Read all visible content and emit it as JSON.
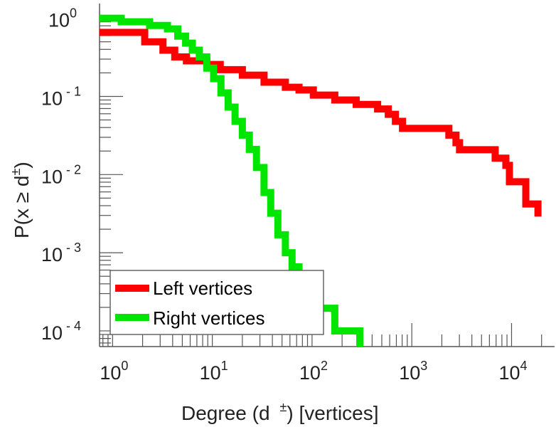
{
  "chart_data": {
    "type": "line",
    "title": "",
    "xlabel": "Degree (d ±) [vertices]",
    "xlabel_parts": {
      "main": "Degree (d",
      "sup": "±",
      "tail": ") [vertices]"
    },
    "ylabel_parts": {
      "main": "P(x ≥ d",
      "sup": "±",
      "tail": ")"
    },
    "xscale": "log",
    "yscale": "log",
    "xlim": [
      0.74,
      27000
    ],
    "ylim": [
      6.3e-05,
      1.25
    ],
    "grid": false,
    "legend_position": "bottom-left",
    "x_ticks": [
      {
        "base": "10",
        "exp": "0",
        "value": 1
      },
      {
        "base": "10",
        "exp": "1",
        "value": 10
      },
      {
        "base": "10",
        "exp": "2",
        "value": 100
      },
      {
        "base": "10",
        "exp": "3",
        "value": 1000
      },
      {
        "base": "10",
        "exp": "4",
        "value": 10000
      }
    ],
    "y_ticks": [
      {
        "base": "10",
        "exp": "0",
        "value": 1
      },
      {
        "base": "10",
        "exp": "-1",
        "value": 0.1
      },
      {
        "base": "10",
        "exp": "-2",
        "value": 0.01
      },
      {
        "base": "10",
        "exp": "-3",
        "value": 0.001
      },
      {
        "base": "10",
        "exp": "-4",
        "value": 0.0001
      }
    ],
    "series": [
      {
        "name": "Left vertices",
        "color": "#ff0000",
        "x": [
          0.74,
          2.1,
          3.2,
          4.2,
          5.5,
          8.8,
          12,
          20,
          33,
          54,
          74,
          103,
          169,
          277,
          454,
          581,
          685,
          807,
          2352,
          2773,
          3010,
          6850,
          8770,
          9520,
          13900,
          18400
        ],
        "y": [
          0.66,
          0.5,
          0.39,
          0.32,
          0.285,
          0.256,
          0.22,
          0.187,
          0.152,
          0.131,
          0.121,
          0.104,
          0.09,
          0.079,
          0.069,
          0.059,
          0.048,
          0.039,
          0.032,
          0.0256,
          0.0208,
          0.0162,
          0.0131,
          0.0081,
          0.0042,
          0.0029
        ]
      },
      {
        "name": "Right vertices",
        "color": "#00e600",
        "x": [
          0.74,
          1.22,
          2.35,
          3.55,
          4.5,
          5.4,
          6.3,
          7.4,
          8.8,
          10.3,
          12.2,
          14.4,
          16.9,
          20,
          23.5,
          27.7,
          33,
          38.5,
          45.4,
          54,
          63,
          74,
          88,
          103,
          169,
          301
        ],
        "y": [
          1.0,
          0.9,
          0.81,
          0.73,
          0.59,
          0.48,
          0.39,
          0.32,
          0.23,
          0.169,
          0.111,
          0.073,
          0.048,
          0.032,
          0.021,
          0.0123,
          0.0059,
          0.0032,
          0.0017,
          0.001,
          0.00066,
          0.00043,
          0.00032,
          0.000195,
          0.0001,
          0.0001
        ]
      }
    ]
  }
}
